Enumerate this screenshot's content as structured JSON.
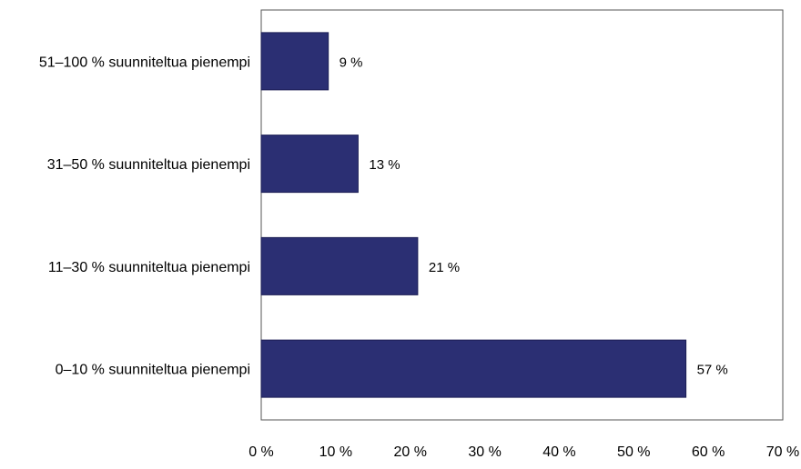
{
  "chart_data": {
    "type": "bar",
    "orientation": "horizontal",
    "categories": [
      "51–100 % suunniteltua pienempi",
      "31–50 % suunniteltua pienempi",
      "11–30 % suunniteltua pienempi",
      "0–10 % suunniteltua pienempi"
    ],
    "values": [
      9,
      13,
      21,
      57
    ],
    "value_labels": [
      "9 %",
      "13 %",
      "21 %",
      "57 %"
    ],
    "x_ticks": [
      "0 %",
      "10 %",
      "20 %",
      "30 %",
      "40 %",
      "50 %",
      "60 %",
      "70 %"
    ],
    "xlim": [
      0,
      70
    ],
    "grid": false,
    "legend": "none",
    "bar_color": "#2b2f73",
    "title": "",
    "xlabel": "",
    "ylabel": ""
  }
}
